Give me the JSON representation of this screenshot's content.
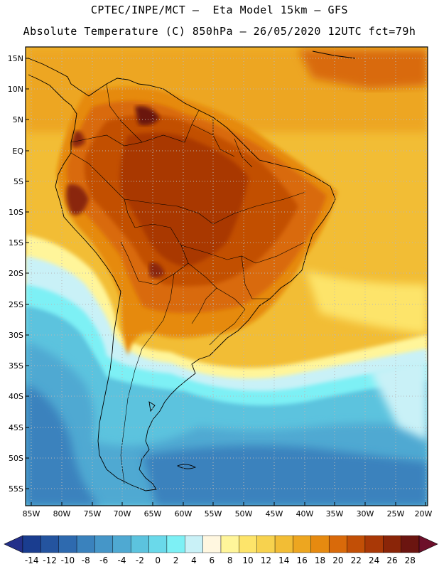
{
  "title_line1": "CPTEC/INPE/MCT –  Eta Model 15km – GFS",
  "title_line2": "Absolute Temperature (C) 850hPa – 26/05/2020 12UTC fct=79h",
  "lat_labels": [
    "15N",
    "10N",
    "5N",
    "EQ",
    "5S",
    "10S",
    "15S",
    "20S",
    "25S",
    "30S",
    "35S",
    "40S",
    "45S",
    "50S",
    "55S"
  ],
  "lon_labels": [
    "85W",
    "80W",
    "75W",
    "70W",
    "65W",
    "60W",
    "55W",
    "50W",
    "45W",
    "40W",
    "35W",
    "30W",
    "25W",
    "20W"
  ],
  "colorbar": {
    "labels": [
      "-14",
      "-12",
      "-10",
      "-8",
      "-6",
      "-4",
      "-2",
      "0",
      "2",
      "4",
      "6",
      "8",
      "10",
      "12",
      "14",
      "16",
      "18",
      "20",
      "22",
      "24",
      "26",
      "28"
    ],
    "colors": [
      "#1a3d8f",
      "#24549f",
      "#2e6aaf",
      "#3a82bd",
      "#4596c8",
      "#4fa9d2",
      "#5cc3de",
      "#6ad9ea",
      "#7df0f5",
      "#c9f1f7",
      "#fff7e0",
      "#fff59a",
      "#fde46a",
      "#f7d24e",
      "#f2bd35",
      "#eda620",
      "#e68a10",
      "#d96a0a",
      "#c24f06",
      "#a93806",
      "#8a2508",
      "#6b1510"
    ],
    "under_color": "#24308a",
    "over_color": "#6d0f2a"
  }
}
